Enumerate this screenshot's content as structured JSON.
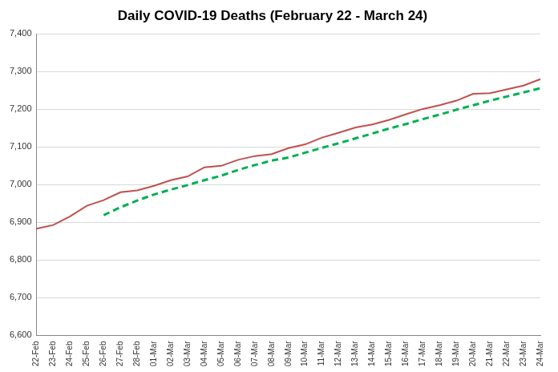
{
  "chart_data": {
    "type": "line",
    "title": "Daily COVID-19 Deaths (February 22 - March 24)",
    "categories": [
      "22-Feb",
      "23-Feb",
      "24-Feb",
      "25-Feb",
      "26-Feb",
      "27-Feb",
      "28-Feb",
      "01-Mar",
      "02-Mar",
      "03-Mar",
      "04-Mar",
      "05-Mar",
      "06-Mar",
      "07-Mar",
      "08-Mar",
      "09-Mar",
      "10-Mar",
      "11-Mar",
      "12-Mar",
      "13-Mar",
      "14-Mar",
      "15-Mar",
      "16-Mar",
      "17-Mar",
      "18-Mar",
      "19-Mar",
      "20-Mar",
      "21-Mar",
      "22-Mar",
      "23-Mar",
      "24-Mar"
    ],
    "series": [
      {
        "color": "#c0504d",
        "line_style": "solid",
        "marker": "none",
        "values": [
          6883,
          6893,
          6916,
          6944,
          6959,
          6980,
          6985,
          6997,
          7012,
          7022,
          7046,
          7050,
          7066,
          7076,
          7081,
          7097,
          7107,
          7125,
          7138,
          7152,
          7160,
          7172,
          7187,
          7201,
          7211,
          7223,
          7241,
          7243,
          7253,
          7263,
          7280
        ]
      },
      {
        "color": "#00b050",
        "line_style": "dashed",
        "marker": "none",
        "values": [
          null,
          null,
          null,
          null,
          6919,
          6940,
          6958,
          6974,
          6987,
          6999,
          7012,
          7024,
          7039,
          7052,
          7064,
          7072,
          7085,
          7098,
          7110,
          7123,
          7136,
          7149,
          7161,
          7174,
          7186,
          7199,
          7211,
          7223,
          7234,
          7245,
          7256
        ]
      }
    ],
    "ylim": [
      6600,
      7400
    ],
    "yticks": [
      {
        "value": 6600,
        "label": "6,600"
      },
      {
        "value": 6700,
        "label": "6,700"
      },
      {
        "value": 6800,
        "label": "6,800"
      },
      {
        "value": 6900,
        "label": "6,900"
      },
      {
        "value": 7000,
        "label": "7,000"
      },
      {
        "value": 7100,
        "label": "7,100"
      },
      {
        "value": 7200,
        "label": "7,200"
      },
      {
        "value": 7300,
        "label": "7,300"
      },
      {
        "value": 7400,
        "label": "7,400"
      }
    ],
    "grid": "y"
  }
}
